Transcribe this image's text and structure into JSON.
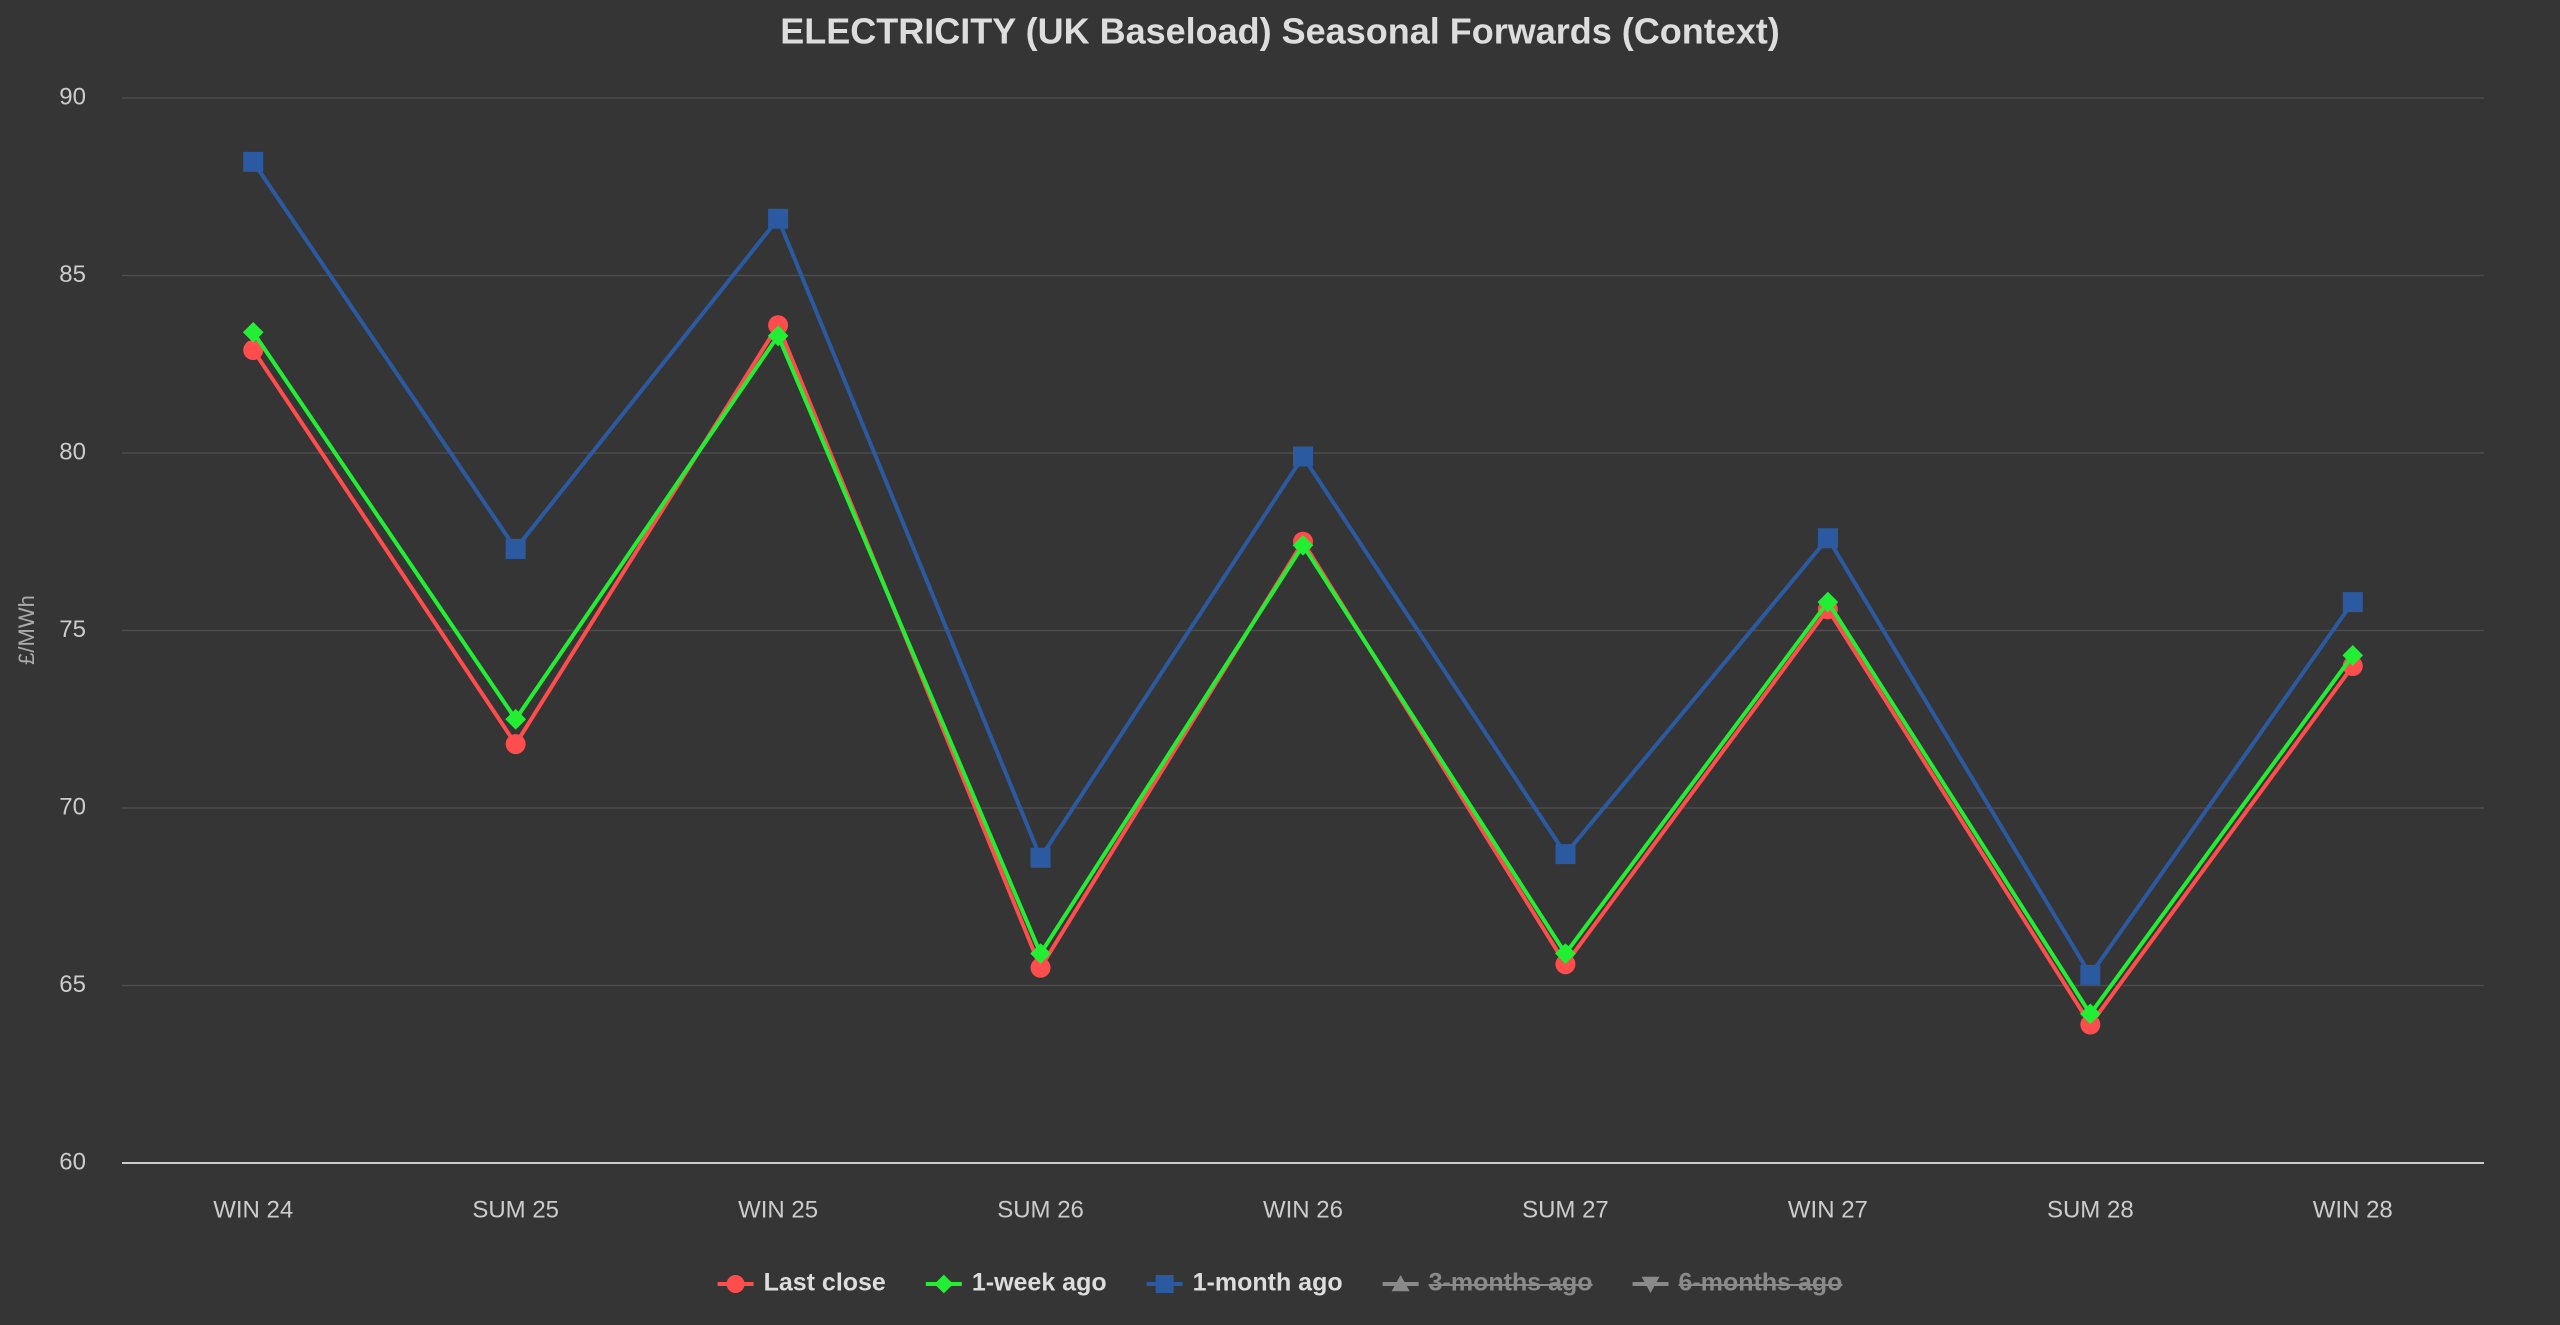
{
  "chart_data": {
    "type": "line",
    "title": "ELECTRICITY (UK Baseload) Seasonal Forwards (Context)",
    "y_label": "£/MWh",
    "categories": [
      "WIN 24",
      "SUM 25",
      "WIN 25",
      "SUM 26",
      "WIN 26",
      "SUM 27",
      "WIN 27",
      "SUM 28",
      "WIN 28"
    ],
    "ylim": [
      60,
      90
    ],
    "yticks": [
      60,
      65,
      70,
      75,
      80,
      85,
      90
    ],
    "grid": true,
    "legend": "bottom",
    "series": [
      {
        "name": "Last close",
        "color": "#ff4d4d",
        "marker": "circle",
        "visible": true,
        "values": [
          82.9,
          71.8,
          83.6,
          65.5,
          77.5,
          65.6,
          75.6,
          63.9,
          74.0
        ]
      },
      {
        "name": "1-week ago",
        "color": "#22ee33",
        "marker": "diamond",
        "visible": true,
        "values": [
          83.4,
          72.5,
          83.3,
          65.9,
          77.4,
          65.9,
          75.8,
          64.2,
          74.3
        ]
      },
      {
        "name": "1-month ago",
        "color": "#2c5aa0",
        "marker": "square",
        "visible": true,
        "values": [
          88.2,
          77.3,
          86.6,
          68.6,
          79.9,
          68.7,
          77.6,
          65.3,
          75.8
        ]
      },
      {
        "name": "3-months ago",
        "color": "#8a8a8a",
        "marker": "triangle",
        "visible": false,
        "values": [
          null,
          null,
          null,
          null,
          null,
          null,
          null,
          null,
          null
        ]
      },
      {
        "name": "6-months ago",
        "color": "#8a8a8a",
        "marker": "triangle-down",
        "visible": false,
        "values": [
          null,
          null,
          null,
          null,
          null,
          null,
          null,
          null,
          null
        ]
      }
    ]
  }
}
